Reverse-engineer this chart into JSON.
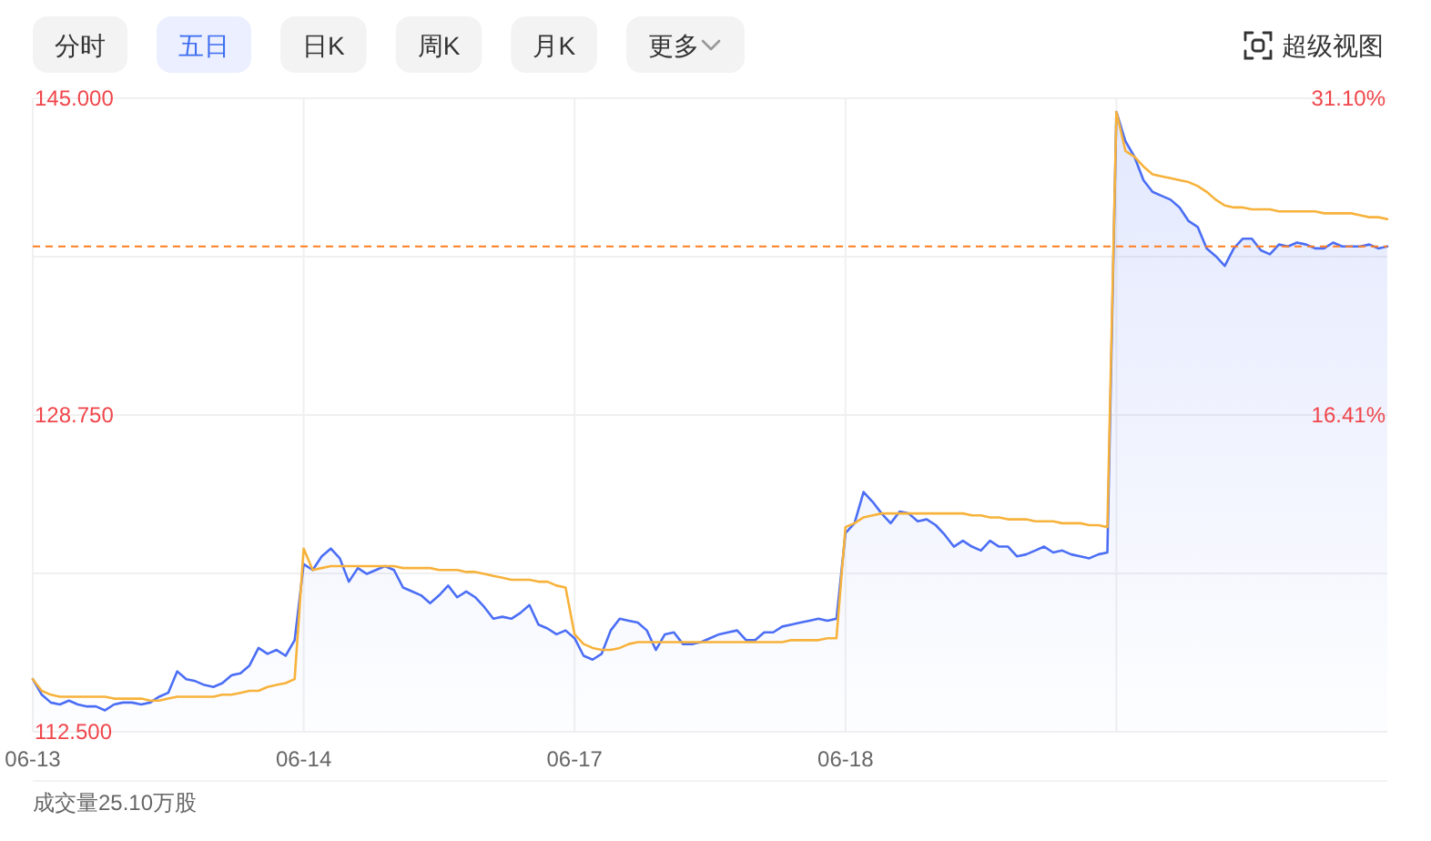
{
  "chart_data": {
    "type": "line",
    "annotations": [
      "分时",
      "五日",
      "日K",
      "周K",
      "月K",
      "更多",
      "超级视图",
      "成交量25.10万股"
    ],
    "categories": [
      "06-13",
      null,
      null,
      null,
      null,
      null,
      null,
      null,
      null,
      null,
      null,
      null,
      null,
      null,
      null,
      null,
      null,
      null,
      null,
      null,
      null,
      null,
      null,
      null,
      null,
      null,
      null,
      null,
      null,
      null,
      "06-14",
      null,
      null,
      null,
      null,
      null,
      null,
      null,
      null,
      null,
      null,
      null,
      null,
      null,
      null,
      null,
      null,
      null,
      null,
      null,
      null,
      null,
      null,
      null,
      null,
      null,
      null,
      null,
      null,
      null,
      "06-17",
      null,
      null,
      null,
      null,
      null,
      null,
      null,
      null,
      null,
      null,
      null,
      null,
      null,
      null,
      null,
      null,
      null,
      null,
      null,
      null,
      null,
      null,
      null,
      null,
      null,
      null,
      null,
      null,
      null,
      "06-18",
      null,
      null,
      null,
      null,
      null,
      null,
      null,
      null,
      null,
      null,
      null,
      null,
      null,
      null,
      null,
      null,
      null,
      null,
      null,
      null,
      null,
      null,
      null,
      null,
      null,
      null,
      null,
      null,
      null,
      null,
      null,
      null,
      null,
      null,
      null,
      null,
      null,
      null,
      null,
      null,
      null,
      null,
      null,
      null,
      null,
      null,
      null,
      null,
      null,
      null,
      null,
      null,
      null,
      null,
      null,
      null,
      null,
      null,
      null,
      null
    ],
    "ylim": [
      112.5,
      145
    ],
    "yticks": [
      {
        "value": 112.5,
        "label": "112.500"
      },
      {
        "value": 120.625,
        "label": null
      },
      {
        "value": 128.75,
        "label": "128.750"
      },
      {
        "value": 136.875,
        "label": null
      },
      {
        "value": 145,
        "label": "145.000"
      }
    ],
    "y2lim": [
      1.72,
      31.1
    ],
    "y2ticks": [
      {
        "value": 31.1,
        "label": "31.10%"
      },
      {
        "value": 16.41,
        "label": "16.41%"
      }
    ],
    "grid": true,
    "ref_lines": [
      {
        "axis": "y",
        "value": 137.4,
        "color": "#ff7d1f",
        "line_style": "dashed"
      }
    ],
    "series": [
      {
        "type": "area",
        "color": "#4b6ef5",
        "values": [
          115.2,
          114.4,
          114.0,
          113.9,
          114.1,
          113.9,
          113.8,
          113.8,
          113.6,
          113.9,
          114.0,
          114.0,
          113.9,
          114.0,
          114.3,
          114.5,
          115.6,
          115.2,
          115.1,
          114.9,
          114.8,
          115.0,
          115.4,
          115.5,
          115.9,
          116.8,
          116.5,
          116.7,
          116.4,
          117.2,
          121.1,
          120.8,
          121.5,
          121.9,
          121.4,
          120.2,
          120.9,
          120.6,
          120.8,
          121.0,
          120.8,
          119.9,
          119.7,
          119.5,
          119.1,
          119.5,
          120.0,
          119.4,
          119.7,
          119.4,
          118.9,
          118.3,
          118.4,
          118.3,
          118.6,
          119.0,
          118.0,
          117.8,
          117.5,
          117.7,
          117.3,
          116.4,
          116.2,
          116.5,
          117.7,
          118.3,
          118.2,
          118.1,
          117.7,
          116.7,
          117.5,
          117.6,
          117.0,
          117.0,
          117.1,
          117.3,
          117.5,
          117.6,
          117.7,
          117.2,
          117.2,
          117.6,
          117.6,
          117.9,
          118.0,
          118.1,
          118.2,
          118.3,
          118.2,
          118.3,
          122.7,
          123.2,
          124.8,
          124.3,
          123.7,
          123.2,
          123.8,
          123.7,
          123.3,
          123.4,
          123.1,
          122.6,
          122.0,
          122.3,
          122.0,
          121.8,
          122.3,
          122.0,
          122.0,
          121.5,
          121.6,
          121.8,
          122.0,
          121.7,
          121.8,
          121.6,
          121.5,
          121.4,
          121.6,
          121.7,
          144.3,
          142.8,
          142.0,
          140.8,
          140.2,
          140.0,
          139.8,
          139.4,
          138.7,
          138.4,
          137.3,
          136.9,
          136.4,
          137.3,
          137.8,
          137.8,
          137.2,
          137.0,
          137.5,
          137.4,
          137.6,
          137.5,
          137.3,
          137.3,
          137.6,
          137.4,
          137.4,
          137.4,
          137.5,
          137.3,
          137.4
        ]
      },
      {
        "color": "#f7b23b",
        "values": [
          115.2,
          114.6,
          114.4,
          114.3,
          114.3,
          114.3,
          114.3,
          114.3,
          114.3,
          114.2,
          114.2,
          114.2,
          114.2,
          114.1,
          114.1,
          114.2,
          114.3,
          114.3,
          114.3,
          114.3,
          114.3,
          114.4,
          114.4,
          114.5,
          114.6,
          114.6,
          114.8,
          114.9,
          115.0,
          115.2,
          121.9,
          120.8,
          120.9,
          121.0,
          121.0,
          121.0,
          121.0,
          121.0,
          121.0,
          121.0,
          121.0,
          120.9,
          120.9,
          120.9,
          120.9,
          120.8,
          120.8,
          120.8,
          120.7,
          120.7,
          120.6,
          120.5,
          120.4,
          120.3,
          120.3,
          120.3,
          120.2,
          120.2,
          120.0,
          119.9,
          117.5,
          117.0,
          116.8,
          116.7,
          116.7,
          116.8,
          117.0,
          117.1,
          117.1,
          117.1,
          117.1,
          117.1,
          117.1,
          117.1,
          117.1,
          117.1,
          117.1,
          117.1,
          117.1,
          117.1,
          117.1,
          117.1,
          117.1,
          117.1,
          117.2,
          117.2,
          117.2,
          117.2,
          117.3,
          117.3,
          123.0,
          123.2,
          123.5,
          123.6,
          123.7,
          123.7,
          123.7,
          123.7,
          123.7,
          123.7,
          123.7,
          123.7,
          123.7,
          123.7,
          123.6,
          123.6,
          123.5,
          123.5,
          123.4,
          123.4,
          123.4,
          123.3,
          123.3,
          123.3,
          123.2,
          123.2,
          123.2,
          123.1,
          123.1,
          123.0,
          144.3,
          142.3,
          142.0,
          141.5,
          141.1,
          141.0,
          140.9,
          140.8,
          140.7,
          140.5,
          140.2,
          139.8,
          139.5,
          139.4,
          139.4,
          139.3,
          139.3,
          139.3,
          139.2,
          139.2,
          139.2,
          139.2,
          139.2,
          139.1,
          139.1,
          139.1,
          139.1,
          139.0,
          138.9,
          138.9,
          138.8
        ]
      }
    ]
  }
}
